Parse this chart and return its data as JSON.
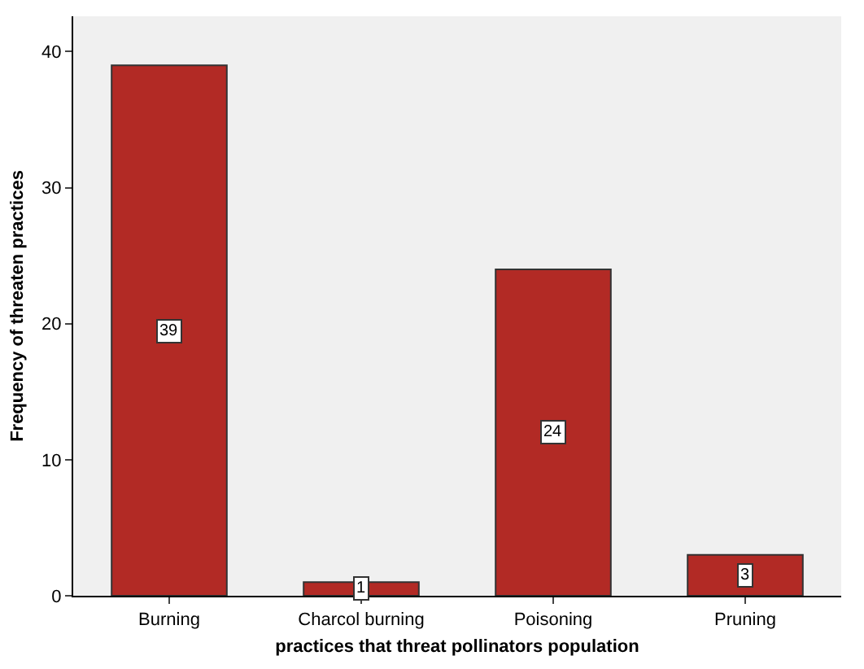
{
  "chart_data": {
    "type": "bar",
    "xlabel": "practices that threat pollinators population",
    "ylabel": "Frequency of threaten practices",
    "categories": [
      "Burning",
      "Charcol burning",
      "Poisoning",
      "Pruning"
    ],
    "values": [
      39,
      1,
      24,
      3
    ],
    "color": "#b22a25",
    "ylim": [
      0,
      42.6
    ],
    "yticks": [
      0,
      10,
      20,
      30,
      40
    ],
    "grid": false,
    "data_labels": true,
    "legend": false
  }
}
